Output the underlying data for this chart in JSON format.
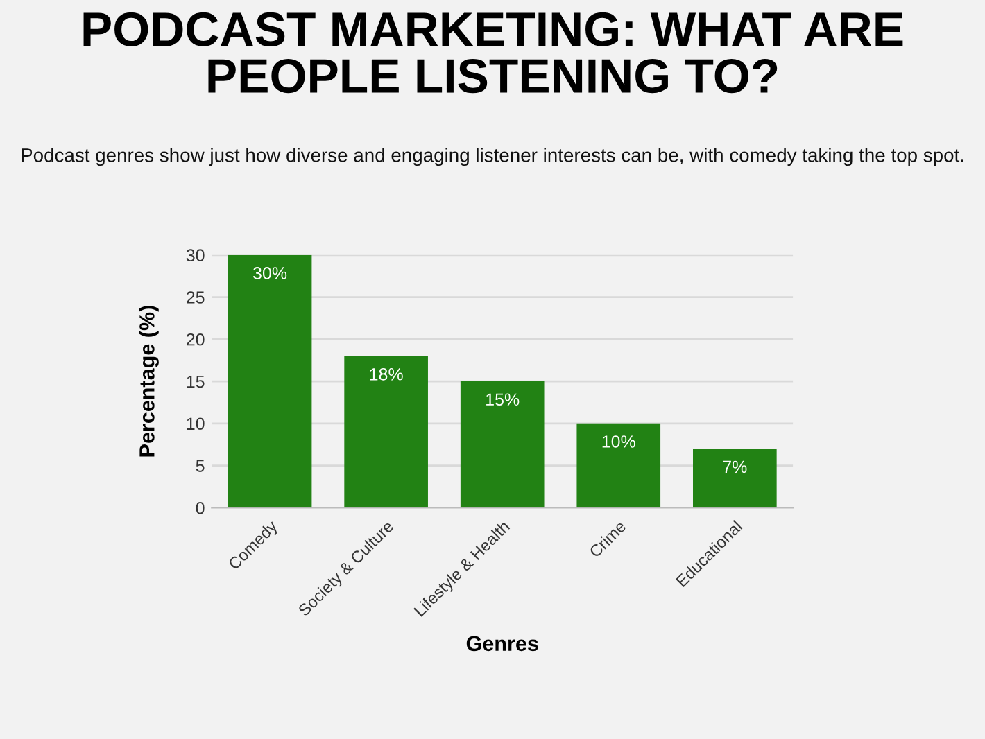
{
  "chart_data": {
    "type": "bar",
    "title": "PODCAST MARKETING: WHAT ARE PEOPLE LISTENING TO?",
    "subtitle": "Podcast genres show just how diverse and engaging listener interests can be, with comedy taking the top spot.",
    "xlabel": "Genres",
    "ylabel": "Percentage (%)",
    "categories": [
      "Comedy",
      "Society & Culture",
      "Lifestyle & Health",
      "Crime",
      "Educational"
    ],
    "values": [
      30,
      18,
      15,
      10,
      7
    ],
    "value_labels": [
      "30%",
      "18%",
      "15%",
      "10%",
      "7%"
    ],
    "color": "#228214",
    "ylim": [
      0,
      30
    ],
    "yticks": [
      0,
      5,
      10,
      15,
      20,
      25,
      30
    ],
    "grid": "y"
  }
}
